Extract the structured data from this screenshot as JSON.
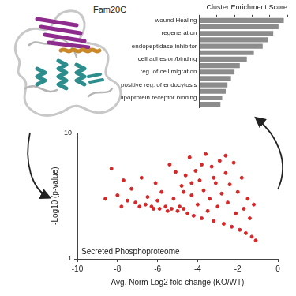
{
  "chart_data": [
    {
      "type": "bar",
      "title": "Cluster Enrichment Score",
      "orientation": "horizontal",
      "categories": [
        "wound Healing",
        null,
        "regeneration",
        null,
        "endopeptidase inhibitor",
        null,
        "cell adhesion/binding",
        null,
        "reg. of cell migration",
        null,
        "positive reg. of endocytosis",
        null,
        "lipoprotein receptor binding",
        null
      ],
      "values": [
        4.8,
        4.5,
        4.2,
        3.9,
        3.6,
        3.1,
        2.7,
        2.3,
        2.0,
        1.8,
        1.6,
        1.5,
        1.3,
        1.2
      ],
      "color": "#8c8c8c",
      "xlim": [
        0,
        5
      ],
      "xticks": [
        0,
        1,
        2,
        3,
        4,
        5
      ],
      "tick_labels": "y",
      "grid": false
    },
    {
      "type": "scatter",
      "annotation": "Secreted Phosphoproteome",
      "x_label": "Avg. Norm Log2 fold change (KO/WT)",
      "y_label": "-Log10 (p-value)",
      "x": [
        -8.6,
        -8.3,
        -8.0,
        -7.8,
        -7.5,
        -7.3,
        -7.1,
        -6.9,
        -6.8,
        -6.6,
        -6.5,
        -6.3,
        -6.2,
        -6.0,
        -5.9,
        -5.8,
        -5.6,
        -5.5,
        -5.4,
        -5.3,
        -5.2,
        -5.0,
        -4.9,
        -4.8,
        -4.7,
        -4.6,
        -4.5,
        -4.4,
        -4.3,
        -4.2,
        -4.1,
        -4.0,
        -3.9,
        -3.8,
        -3.7,
        -3.6,
        -3.5,
        -3.4,
        -3.3,
        -3.2,
        -3.1,
        -3.0,
        -2.9,
        -2.8,
        -2.7,
        -2.6,
        -2.5,
        -2.4,
        -2.3,
        -2.2,
        -2.1,
        -2.0,
        -1.9,
        -1.8,
        -1.7,
        -1.6,
        -1.5,
        -1.4,
        -1.3,
        -1.2,
        -1.1,
        -6.1,
        -5.1,
        -4.3,
        -3.8,
        -2.6,
        -3.2,
        -4.7,
        -7.7
      ],
      "values": [
        3.0,
        5.2,
        3.2,
        2.6,
        2.9,
        3.6,
        2.8,
        2.6,
        4.4,
        2.7,
        3.1,
        2.6,
        2.5,
        2.9,
        2.5,
        3.4,
        2.6,
        2.4,
        5.6,
        2.5,
        3.0,
        2.4,
        2.6,
        3.8,
        2.5,
        4.6,
        2.3,
        6.4,
        3.2,
        2.2,
        5.0,
        2.7,
        4.2,
        2.1,
        3.5,
        6.8,
        2.4,
        3.0,
        5.4,
        2.0,
        4.0,
        2.6,
        6.0,
        3.3,
        1.9,
        4.8,
        2.8,
        3.9,
        1.8,
        5.8,
        2.3,
        3.4,
        1.7,
        4.4,
        2.5,
        1.6,
        3.0,
        2.1,
        1.5,
        2.7,
        1.4,
        4.0,
        4.9,
        4.0,
        5.6,
        6.6,
        4.4,
        3.4,
        4.2
      ],
      "color": "#d62728",
      "xlim": [
        -10,
        0
      ],
      "xticks": [
        -10,
        -8,
        -6,
        -4,
        -2,
        0
      ],
      "ylim": [
        1,
        10
      ],
      "yticks": [
        1,
        10
      ],
      "log": "y",
      "grid": false
    }
  ],
  "diagram": {
    "protein_label": "Fam20C"
  }
}
